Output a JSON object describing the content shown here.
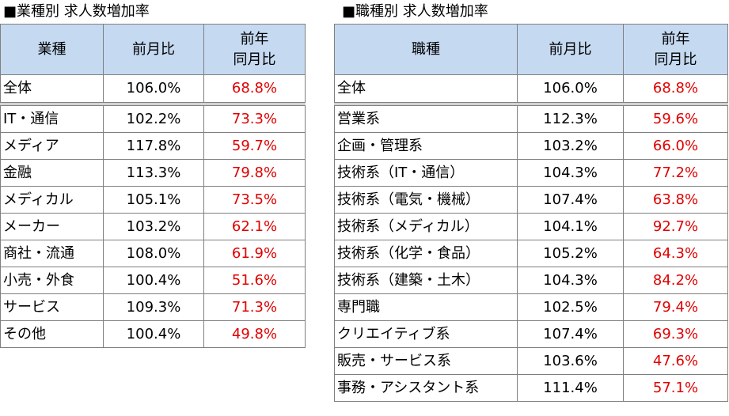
{
  "colors": {
    "header_bg": "#c5d9f1",
    "yoy_text": "#e00000",
    "border": "#7f7f7f"
  },
  "industry": {
    "title": "■業種別 求人数増加率",
    "headers": {
      "name": "業種",
      "mom": "前月比",
      "yoy_line1": "前年",
      "yoy_line2": "同月比"
    },
    "total": {
      "name": "全体",
      "mom": "106.0%",
      "yoy": "68.8%"
    },
    "rows": [
      {
        "name": "IT・通信",
        "mom": "102.2%",
        "yoy": "73.3%"
      },
      {
        "name": "メディア",
        "mom": "117.8%",
        "yoy": "59.7%"
      },
      {
        "name": "金融",
        "mom": "113.3%",
        "yoy": "79.8%"
      },
      {
        "name": "メディカル",
        "mom": "105.1%",
        "yoy": "73.5%"
      },
      {
        "name": "メーカー",
        "mom": "103.2%",
        "yoy": "62.1%"
      },
      {
        "name": "商社・流通",
        "mom": "108.0%",
        "yoy": "61.9%"
      },
      {
        "name": "小売・外食",
        "mom": "100.4%",
        "yoy": "51.6%"
      },
      {
        "name": "サービス",
        "mom": "109.3%",
        "yoy": "71.3%"
      },
      {
        "name": "その他",
        "mom": "100.4%",
        "yoy": "49.8%"
      }
    ]
  },
  "occupation": {
    "title": "■職種別 求人数増加率",
    "headers": {
      "name": "職種",
      "mom": "前月比",
      "yoy_line1": "前年",
      "yoy_line2": "同月比"
    },
    "total": {
      "name": "全体",
      "mom": "106.0%",
      "yoy": "68.8%"
    },
    "rows": [
      {
        "name": "営業系",
        "mom": "112.3%",
        "yoy": "59.6%"
      },
      {
        "name": "企画・管理系",
        "mom": "103.2%",
        "yoy": "66.0%"
      },
      {
        "name": "技術系（IT・通信）",
        "mom": "104.3%",
        "yoy": "77.2%"
      },
      {
        "name": "技術系（電気・機械）",
        "mom": "107.4%",
        "yoy": "63.8%"
      },
      {
        "name": "技術系（メディカル）",
        "mom": "104.1%",
        "yoy": "92.7%"
      },
      {
        "name": "技術系（化学・食品）",
        "mom": "105.2%",
        "yoy": "64.3%"
      },
      {
        "name": "技術系（建築・土木）",
        "mom": "104.3%",
        "yoy": "84.2%"
      },
      {
        "name": "専門職",
        "mom": "102.5%",
        "yoy": "79.4%"
      },
      {
        "name": "クリエイティブ系",
        "mom": "107.4%",
        "yoy": "69.3%"
      },
      {
        "name": "販売・サービス系",
        "mom": "103.6%",
        "yoy": "47.6%"
      },
      {
        "name": "事務・アシスタント系",
        "mom": "111.4%",
        "yoy": "57.1%"
      }
    ]
  }
}
